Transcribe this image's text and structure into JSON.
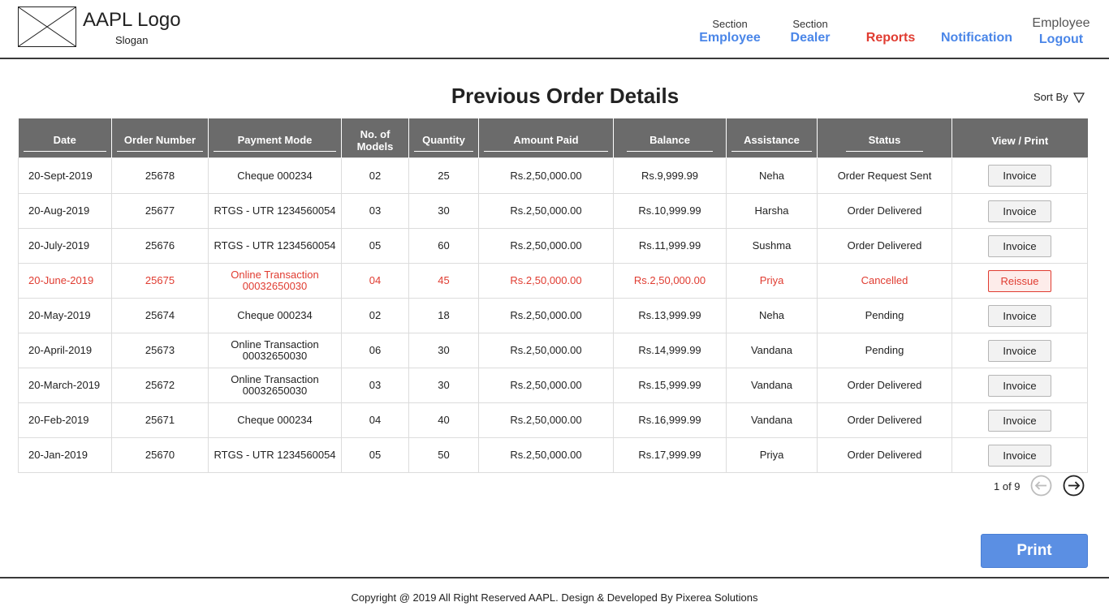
{
  "brand": {
    "logo_text": "AAPL Logo",
    "slogan": "Slogan"
  },
  "nav": {
    "employee": {
      "sub": "Section",
      "label": "Employee"
    },
    "dealer": {
      "sub": "Section",
      "label": "Dealer"
    },
    "reports": {
      "label": "Reports"
    },
    "notification": {
      "label": "Notification"
    },
    "user": {
      "name": "Employee",
      "label": "Logout"
    },
    "accent_color": "#4a86e8",
    "active_color": "#e03c31"
  },
  "page": {
    "title": "Previous Order Details",
    "sort_label": "Sort By"
  },
  "table": {
    "headers": [
      "Date",
      "Order Number",
      "Payment Mode",
      "No. of Models",
      "Quantity",
      "Amount Paid",
      "Balance",
      "Assistance",
      "Status",
      "View / Print"
    ],
    "rows": [
      {
        "date": "20-Sept-2019",
        "order": "25678",
        "payment": "Cheque 000234",
        "models": "02",
        "qty": "25",
        "paid": "Rs.2,50,000.00",
        "balance": "Rs.9,999.99",
        "assist": "Neha",
        "status": "Order Request Sent",
        "action": "Invoice"
      },
      {
        "date": "20-Aug-2019",
        "order": "25677",
        "payment": "RTGS - UTR 1234560054",
        "models": "03",
        "qty": "30",
        "paid": "Rs.2,50,000.00",
        "balance": "Rs.10,999.99",
        "assist": "Harsha",
        "status": "Order Delivered",
        "action": "Invoice"
      },
      {
        "date": "20-July-2019",
        "order": "25676",
        "payment": "RTGS - UTR 1234560054",
        "models": "05",
        "qty": "60",
        "paid": "Rs.2,50,000.00",
        "balance": "Rs.11,999.99",
        "assist": "Sushma",
        "status": "Order Delivered",
        "action": "Invoice"
      },
      {
        "date": "20-June-2019",
        "order": "25675",
        "payment": "Online Transaction",
        "payment2": "00032650030",
        "models": "04",
        "qty": "45",
        "paid": "Rs.2,50,000.00",
        "balance": "Rs.2,50,000.00",
        "assist": "Priya",
        "status": "Cancelled",
        "action": "Reissue"
      },
      {
        "date": "20-May-2019",
        "order": "25674",
        "payment": "Cheque 000234",
        "models": "02",
        "qty": "18",
        "paid": "Rs.2,50,000.00",
        "balance": "Rs.13,999.99",
        "assist": "Neha",
        "status": "Pending",
        "action": "Invoice"
      },
      {
        "date": "20-April-2019",
        "order": "25673",
        "payment": "Online Transaction",
        "payment2": "00032650030",
        "models": "06",
        "qty": "30",
        "paid": "Rs.2,50,000.00",
        "balance": "Rs.14,999.99",
        "assist": "Vandana",
        "status": "Pending",
        "action": "Invoice"
      },
      {
        "date": "20-March-2019",
        "order": "25672",
        "payment": "Online Transaction",
        "payment2": "00032650030",
        "models": "03",
        "qty": "30",
        "paid": "Rs.2,50,000.00",
        "balance": "Rs.15,999.99",
        "assist": "Vandana",
        "status": "Order Delivered",
        "action": "Invoice"
      },
      {
        "date": "20-Feb-2019",
        "order": "25671",
        "payment": "Cheque 000234",
        "models": "04",
        "qty": "40",
        "paid": "Rs.2,50,000.00",
        "balance": "Rs.16,999.99",
        "assist": "Vandana",
        "status": "Order Delivered",
        "action": "Invoice"
      },
      {
        "date": "20-Jan-2019",
        "order": "25670",
        "payment": "RTGS - UTR 1234560054",
        "models": "05",
        "qty": "50",
        "paid": "Rs.2,50,000.00",
        "balance": "Rs.17,999.99",
        "assist": "Priya",
        "status": "Order Delivered",
        "action": "Invoice"
      }
    ],
    "header_bg": "#6b6b6b",
    "cancel_color": "#e03c31"
  },
  "pagination": {
    "text": "1 of 9",
    "prev_icon": "arrow-left-circle-icon",
    "next_icon": "arrow-right-circle-icon"
  },
  "actions": {
    "print_label": "Print",
    "print_color": "#5b8fe3"
  },
  "footer": {
    "copyright": "Copyright @ 2019 All Right Reserved AAPL. Design & Developed By Pixerea Solutions"
  }
}
